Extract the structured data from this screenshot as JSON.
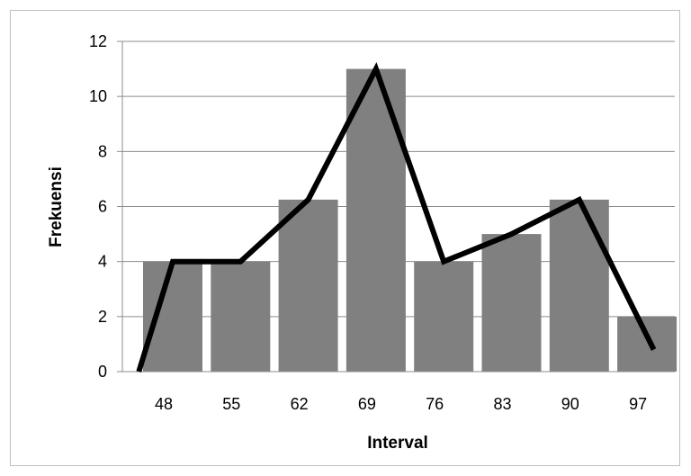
{
  "chart_data": {
    "type": "bar",
    "title": "",
    "xlabel": "Interval",
    "ylabel": "Frekuensi",
    "categories": [
      "48",
      "55",
      "62",
      "69",
      "76",
      "83",
      "90",
      "97"
    ],
    "series": [
      {
        "type": "bar",
        "values": [
          4,
          4,
          6.25,
          11,
          4,
          5,
          6.25,
          2
        ],
        "color": "#808080"
      },
      {
        "type": "line",
        "x": [
          44.5,
          48,
          55,
          62,
          69,
          76,
          83,
          90,
          97.7
        ],
        "values": [
          0,
          4,
          4,
          6.25,
          11,
          4,
          5,
          6.25,
          0.8
        ],
        "color": "#000000"
      }
    ],
    "ylim": [
      0,
      12
    ],
    "yticks": [
      "0",
      "2",
      "4",
      "6",
      "8",
      "10",
      "12"
    ],
    "grid": true,
    "legend": "none"
  }
}
